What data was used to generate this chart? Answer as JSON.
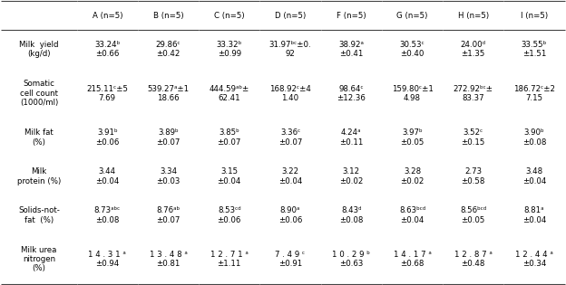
{
  "header_bg": "#FFFFCC",
  "header_col0": "",
  "columns": [
    "A (n=5)",
    "B (n=5)",
    "C (n=5)",
    "D (n=5)",
    "F (n=5)",
    "G (n=5)",
    "H (n=5)",
    "I (n=5)"
  ],
  "rows": [
    {
      "label": "Milk  yield\n(kg/d)",
      "values": [
        "33.24ᵇ\n±0.66",
        "29.86ᶜ\n±0.42",
        "33.32ᵇ\n±0.99",
        "31.97ᵇᶜ±0.\n92",
        "38.92ᵃ\n±0.41",
        "30.53ᶜ\n±0.40",
        "24.00ᵈ\n±1.35",
        "33.55ᵇ\n±1.51"
      ]
    },
    {
      "label": "Somatic\ncell count\n(1000/ml)",
      "values": [
        "215.11ᶜ±5\n7.69",
        "539.27ᵃ±1\n18.66",
        "444.59ᵃᵇ±\n62.41",
        "168.92ᶜ±4\n1.40",
        "98.64ᶜ\n±12.36",
        "159.80ᶜ±1\n4.98",
        "272.92ᵇᶜ±\n83.37",
        "186.72ᶜ±2\n7.15"
      ]
    },
    {
      "label": "Milk fat\n(%)",
      "values": [
        "3.91ᵇ\n±0.06",
        "3.89ᵇ\n±0.07",
        "3.85ᵇ\n±0.07",
        "3.36ᶜ\n±0.07",
        "4.24ᵃ\n±0.11",
        "3.97ᵇ\n±0.05",
        "3.52ᶜ\n±0.15",
        "3.90ᵇ\n±0.08"
      ]
    },
    {
      "label": "Milk\nprotein (%)",
      "values": [
        "3.44\n±0.04",
        "3.34\n±0.03",
        "3.15\n±0.04",
        "3.22\n±0.04",
        "3.12\n±0.02",
        "3.28\n±0.02",
        "2.73\n±0.58",
        "3.48\n±0.04"
      ]
    },
    {
      "label": "Solids-not-\nfat  (%)",
      "values": [
        "8.73ᵃᵇᶜ\n±0.08",
        "8.76ᵃᵇ\n±0.07",
        "8.53ᶜᵈ\n±0.06",
        "8.90ᵃ\n±0.06",
        "8.43ᵈ\n±0.08",
        "8.63ᵇᶜᵈ\n±0.04",
        "8.56ᵇᶜᵈ\n±0.05",
        "8.81ᵃ\n±0.04"
      ]
    },
    {
      "label": "Milk urea\nnitrogen\n(%)",
      "values": [
        "1 4 . 3 1 ᵃ\n±0.94",
        "1 3 . 4 8 ᵃ\n±0.81",
        "1 2 . 7 1 ᵃ\n±1.11",
        "7 . 4 9 ᶜ\n±0.91",
        "1 0 . 2 9 ᵇ\n±0.63",
        "1 4 . 1 7 ᵃ\n±0.68",
        "1 2 . 8 7 ᵃ\n±0.48",
        "1 2 . 4 4 ᵃ\n±0.34"
      ]
    }
  ],
  "figsize": [
    6.24,
    3.15
  ],
  "dpi": 100
}
